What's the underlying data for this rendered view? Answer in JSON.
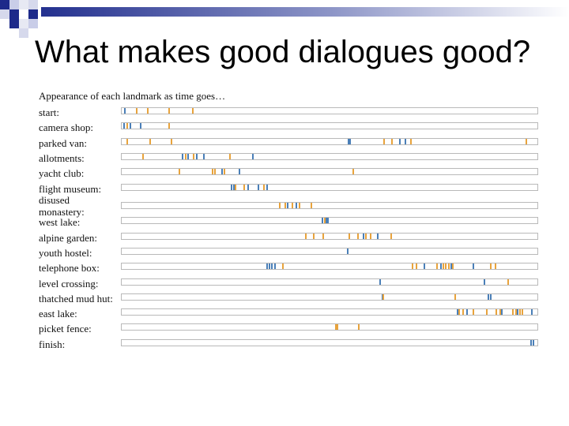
{
  "slide": {
    "title": "What makes good dialogues good?"
  },
  "figure": {
    "heading": "Appearance of each landmark as time goes…",
    "colors": {
      "blue": "#4a7fb8",
      "orange": "#e8a33c",
      "track_border": "#b9b9b9"
    },
    "rows": [
      {
        "label": "start:",
        "marks": [
          [
            0.005,
            "b"
          ],
          [
            0.034,
            "o"
          ],
          [
            0.061,
            "o"
          ],
          [
            0.112,
            "o"
          ],
          [
            0.17,
            "o"
          ]
        ]
      },
      {
        "label": "camera shop:",
        "marks": [
          [
            0.003,
            "b"
          ],
          [
            0.012,
            "o"
          ],
          [
            0.019,
            "b"
          ],
          [
            0.044,
            "b"
          ],
          [
            0.112,
            "o"
          ]
        ]
      },
      {
        "label": "parked van:",
        "marks": [
          [
            0.012,
            "o"
          ],
          [
            0.067,
            "o"
          ],
          [
            0.117,
            "o"
          ],
          [
            0.544,
            "b"
          ],
          [
            0.547,
            "b"
          ],
          [
            0.63,
            "o"
          ],
          [
            0.648,
            "o"
          ],
          [
            0.667,
            "b"
          ],
          [
            0.681,
            "b"
          ],
          [
            0.694,
            "o"
          ],
          [
            0.972,
            "o"
          ]
        ]
      },
      {
        "label": "allotments:",
        "marks": [
          [
            0.05,
            "o"
          ],
          [
            0.144,
            "b"
          ],
          [
            0.152,
            "o"
          ],
          [
            0.158,
            "b"
          ],
          [
            0.172,
            "o"
          ],
          [
            0.178,
            "b"
          ],
          [
            0.195,
            "b"
          ],
          [
            0.258,
            "o"
          ],
          [
            0.313,
            "b"
          ]
        ]
      },
      {
        "label": "yacht club:",
        "marks": [
          [
            0.136,
            "o"
          ],
          [
            0.217,
            "o"
          ],
          [
            0.223,
            "o"
          ],
          [
            0.239,
            "b"
          ],
          [
            0.245,
            "o"
          ],
          [
            0.282,
            "b"
          ],
          [
            0.555,
            "o"
          ]
        ]
      },
      {
        "label": "flight museum:",
        "marks": [
          [
            0.262,
            "b"
          ],
          [
            0.268,
            "b"
          ],
          [
            0.272,
            "o"
          ],
          [
            0.293,
            "o"
          ],
          [
            0.302,
            "b"
          ],
          [
            0.327,
            "b"
          ],
          [
            0.34,
            "o"
          ],
          [
            0.348,
            "b"
          ]
        ]
      },
      {
        "label": "disused monastery:",
        "marks": [
          [
            0.378,
            "o"
          ],
          [
            0.392,
            "o"
          ],
          [
            0.398,
            "b"
          ],
          [
            0.408,
            "o"
          ],
          [
            0.419,
            "b"
          ],
          [
            0.426,
            "o"
          ],
          [
            0.455,
            "o"
          ]
        ]
      },
      {
        "label": "west lake:",
        "marks": [
          [
            0.481,
            "b"
          ],
          [
            0.486,
            "o"
          ],
          [
            0.49,
            "b"
          ],
          [
            0.494,
            "b"
          ]
        ]
      },
      {
        "label": "alpine garden:",
        "marks": [
          [
            0.441,
            "o"
          ],
          [
            0.461,
            "o"
          ],
          [
            0.483,
            "o"
          ],
          [
            0.546,
            "o"
          ],
          [
            0.566,
            "o"
          ],
          [
            0.579,
            "b"
          ],
          [
            0.585,
            "o"
          ],
          [
            0.597,
            "o"
          ],
          [
            0.615,
            "b"
          ],
          [
            0.646,
            "o"
          ]
        ]
      },
      {
        "label": "youth hostel:",
        "marks": [
          [
            0.541,
            "b"
          ]
        ]
      },
      {
        "label": "telephone box:",
        "marks": [
          [
            0.348,
            "b"
          ],
          [
            0.354,
            "b"
          ],
          [
            0.36,
            "b"
          ],
          [
            0.366,
            "b"
          ],
          [
            0.385,
            "o"
          ],
          [
            0.697,
            "o"
          ],
          [
            0.707,
            "o"
          ],
          [
            0.726,
            "b"
          ],
          [
            0.756,
            "o"
          ],
          [
            0.766,
            "b"
          ],
          [
            0.771,
            "o"
          ],
          [
            0.778,
            "o"
          ],
          [
            0.785,
            "o"
          ],
          [
            0.79,
            "b"
          ],
          [
            0.795,
            "o"
          ],
          [
            0.844,
            "b"
          ],
          [
            0.886,
            "o"
          ],
          [
            0.897,
            "o"
          ]
        ]
      },
      {
        "label": "level crossing:",
        "marks": [
          [
            0.62,
            "b"
          ],
          [
            0.871,
            "b"
          ],
          [
            0.928,
            "o"
          ]
        ]
      },
      {
        "label": "thatched mud hut:",
        "marks": [
          [
            0.625,
            "b"
          ],
          [
            0.628,
            "o"
          ],
          [
            0.8,
            "o"
          ],
          [
            0.881,
            "b"
          ],
          [
            0.886,
            "b"
          ]
        ]
      },
      {
        "label": "east lake:",
        "marks": [
          [
            0.806,
            "b"
          ],
          [
            0.81,
            "o"
          ],
          [
            0.819,
            "o"
          ],
          [
            0.829,
            "b"
          ],
          [
            0.844,
            "o"
          ],
          [
            0.876,
            "o"
          ],
          [
            0.899,
            "o"
          ],
          [
            0.908,
            "o"
          ],
          [
            0.913,
            "b"
          ],
          [
            0.94,
            "o"
          ],
          [
            0.947,
            "o"
          ],
          [
            0.951,
            "b"
          ],
          [
            0.956,
            "o"
          ],
          [
            0.962,
            "o"
          ],
          [
            0.985,
            "b"
          ]
        ]
      },
      {
        "label": "picket fence:",
        "marks": [
          [
            0.514,
            "o"
          ],
          [
            0.518,
            "o"
          ],
          [
            0.568,
            "o"
          ]
        ]
      },
      {
        "label": "finish:",
        "marks": [
          [
            0.983,
            "b"
          ],
          [
            0.989,
            "b"
          ]
        ]
      }
    ]
  }
}
